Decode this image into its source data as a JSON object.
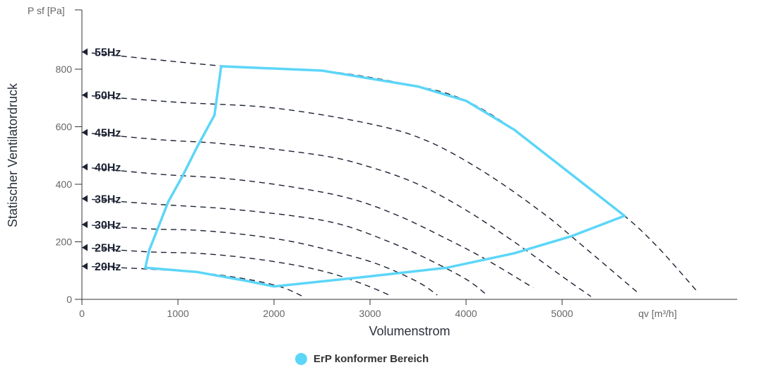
{
  "chart_data": {
    "type": "line",
    "ylabel": "Statischer Ventilatordruck",
    "yunit": "P sf [Pa]",
    "xlabel": "Volumenstrom",
    "xunit": "qv [m³/h]",
    "xlim": [
      0,
      6800
    ],
    "ylim": [
      0,
      1000
    ],
    "xticks": [
      0,
      1000,
      2000,
      3000,
      4000,
      5000
    ],
    "yticks": [
      0,
      200,
      400,
      600,
      800
    ],
    "grid": false,
    "legend_position": "bottom-center",
    "curves": [
      {
        "label": "55Hz",
        "points": [
          [
            0,
            860
          ],
          [
            1500,
            810
          ],
          [
            2500,
            795
          ],
          [
            3500,
            740
          ],
          [
            4000,
            690
          ],
          [
            4500,
            590
          ],
          [
            5000,
            460
          ],
          [
            5650,
            290
          ],
          [
            6000,
            180
          ],
          [
            6400,
            30
          ]
        ]
      },
      {
        "label": "50Hz",
        "points": [
          [
            0,
            710
          ],
          [
            1000,
            685
          ],
          [
            2000,
            665
          ],
          [
            3000,
            610
          ],
          [
            3600,
            550
          ],
          [
            4200,
            440
          ],
          [
            4800,
            300
          ],
          [
            5200,
            190
          ],
          [
            5800,
            20
          ]
        ]
      },
      {
        "label": "45Hz",
        "points": [
          [
            0,
            580
          ],
          [
            800,
            555
          ],
          [
            1500,
            540
          ],
          [
            2500,
            500
          ],
          [
            3000,
            460
          ],
          [
            3500,
            400
          ],
          [
            4000,
            310
          ],
          [
            4500,
            200
          ],
          [
            5000,
            80
          ],
          [
            5300,
            10
          ]
        ]
      },
      {
        "label": "40Hz",
        "points": [
          [
            0,
            460
          ],
          [
            800,
            435
          ],
          [
            1500,
            420
          ],
          [
            2200,
            390
          ],
          [
            2800,
            350
          ],
          [
            3300,
            290
          ],
          [
            3800,
            210
          ],
          [
            4200,
            140
          ],
          [
            4700,
            40
          ]
        ]
      },
      {
        "label": "35Hz",
        "points": [
          [
            0,
            350
          ],
          [
            800,
            330
          ],
          [
            1500,
            315
          ],
          [
            2200,
            290
          ],
          [
            2700,
            260
          ],
          [
            3200,
            200
          ],
          [
            3600,
            140
          ],
          [
            4000,
            70
          ],
          [
            4200,
            20
          ]
        ]
      },
      {
        "label": "30Hz",
        "points": [
          [
            0,
            260
          ],
          [
            700,
            245
          ],
          [
            1200,
            240
          ],
          [
            1700,
            225
          ],
          [
            2200,
            200
          ],
          [
            2700,
            160
          ],
          [
            3100,
            120
          ],
          [
            3500,
            60
          ],
          [
            3700,
            15
          ]
        ]
      },
      {
        "label": "25Hz",
        "points": [
          [
            0,
            180
          ],
          [
            700,
            165
          ],
          [
            1200,
            160
          ],
          [
            1700,
            145
          ],
          [
            2200,
            120
          ],
          [
            2600,
            90
          ],
          [
            2950,
            50
          ],
          [
            3200,
            15
          ]
        ]
      },
      {
        "label": "20Hz",
        "points": [
          [
            0,
            115
          ],
          [
            700,
            105
          ],
          [
            1300,
            90
          ],
          [
            1800,
            65
          ],
          [
            2100,
            40
          ],
          [
            2300,
            10
          ]
        ]
      }
    ],
    "erp_region": {
      "label": "ErP konformer Bereich",
      "color": "#5cd6f8",
      "points": [
        [
          660,
          110
        ],
        [
          700,
          170
        ],
        [
          900,
          340
        ],
        [
          1050,
          430
        ],
        [
          1200,
          530
        ],
        [
          1380,
          640
        ],
        [
          1450,
          810
        ],
        [
          2500,
          795
        ],
        [
          3500,
          740
        ],
        [
          4000,
          690
        ],
        [
          4500,
          590
        ],
        [
          5000,
          460
        ],
        [
          5650,
          290
        ],
        [
          5100,
          220
        ],
        [
          4500,
          160
        ],
        [
          3800,
          110
        ],
        [
          3000,
          80
        ],
        [
          2000,
          45
        ],
        [
          1700,
          65
        ],
        [
          1200,
          95
        ],
        [
          660,
          110
        ]
      ]
    }
  }
}
